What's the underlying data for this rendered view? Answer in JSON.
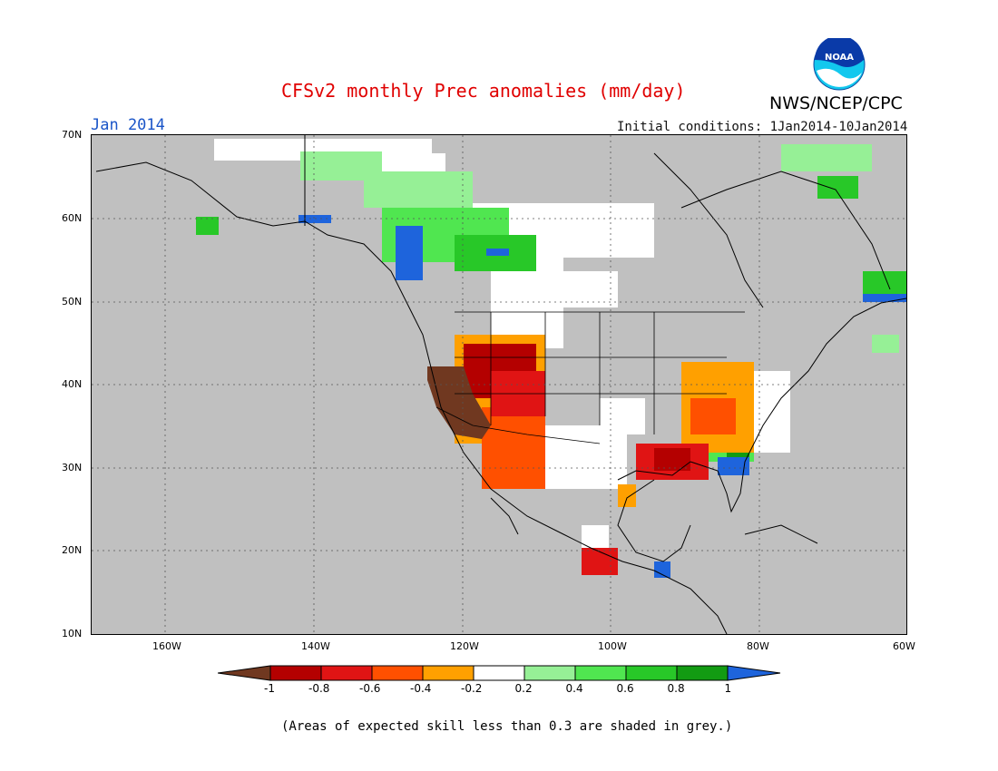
{
  "header": {
    "title": "CFSv2 monthly Prec anomalies (mm/day)",
    "period": "Jan 2014",
    "initial_conditions": "Initial conditions: 1Jan2014-10Jan2014",
    "agency": "NWS/NCEP/CPC",
    "logo_text": "NOAA"
  },
  "map": {
    "lat_labels": [
      "70N",
      "60N",
      "50N",
      "40N",
      "30N",
      "20N",
      "10N"
    ],
    "lon_labels": [
      "160W",
      "140W",
      "120W",
      "100W",
      "80W",
      "60W"
    ],
    "extent": {
      "lon": [
        -170,
        -60
      ],
      "lat": [
        10,
        70
      ]
    }
  },
  "legend": {
    "labels": [
      "-1",
      "-0.8",
      "-0.6",
      "-0.4",
      "-0.2",
      "0.2",
      "0.4",
      "0.6",
      "0.8",
      "1"
    ],
    "colors": [
      "#703820",
      "#b40000",
      "#e01414",
      "#ff5000",
      "#ffa000",
      "#ffffff",
      "#96f096",
      "#50e650",
      "#28c828",
      "#129b12",
      "#1e64dc"
    ],
    "skill_grey": "#c0c0c0"
  },
  "note": "(Areas of expected skill less than 0.3 are shaded in grey.)"
}
